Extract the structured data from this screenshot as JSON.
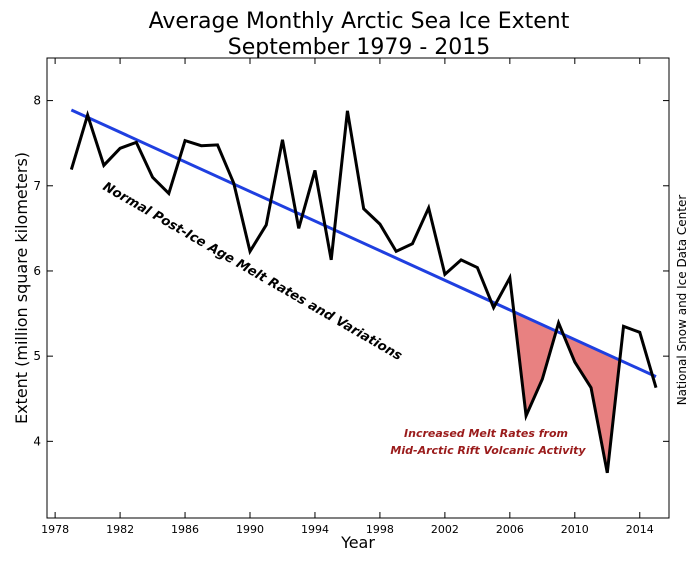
{
  "chart_data": {
    "type": "line",
    "title": "Average Monthly Arctic Sea Ice Extent",
    "subtitle": "September 1979 - 2015",
    "xlabel": "Year",
    "ylabel": "Extent (million square kilometers)",
    "xlim": [
      1977.5,
      2015.8
    ],
    "ylim": [
      3.1,
      8.5
    ],
    "xticks": [
      1978,
      1982,
      1986,
      1990,
      1994,
      1998,
      2002,
      2006,
      2010,
      2014
    ],
    "yticks": [
      4,
      5,
      6,
      7,
      8
    ],
    "grid": false,
    "series": [
      {
        "color": "#000000",
        "x": [
          1979,
          1980,
          1981,
          1982,
          1983,
          1984,
          1985,
          1986,
          1987,
          1988,
          1989,
          1990,
          1991,
          1992,
          1993,
          1994,
          1995,
          1996,
          1997,
          1998,
          1999,
          2000,
          2001,
          2002,
          2003,
          2004,
          2005,
          2006,
          2007,
          2008,
          2009,
          2010,
          2011,
          2012,
          2013,
          2014,
          2015
        ],
        "values": [
          7.19,
          7.83,
          7.24,
          7.44,
          7.51,
          7.1,
          6.91,
          7.53,
          7.47,
          7.48,
          7.03,
          6.23,
          6.54,
          7.54,
          6.5,
          7.18,
          6.13,
          7.88,
          6.73,
          6.55,
          6.23,
          6.32,
          6.74,
          5.96,
          6.13,
          6.04,
          5.57,
          5.92,
          4.3,
          4.73,
          5.39,
          4.93,
          4.63,
          3.63,
          5.35,
          5.28,
          4.63
        ]
      }
    ],
    "trend": {
      "color": "#1f3fe0",
      "x": [
        1979,
        2015
      ],
      "values": [
        7.89,
        4.76
      ]
    },
    "fill_color": "#e57373",
    "annotations": {
      "normal": "Normal Post-Ice Age Melt Rates and Variations",
      "melt_line1": "Increased Melt Rates from",
      "melt_line2": "Mid-Arctic Rift Volcanic Activity",
      "melt_color": "#9a1b1b",
      "source": "National Snow and Ice Data Center"
    }
  }
}
